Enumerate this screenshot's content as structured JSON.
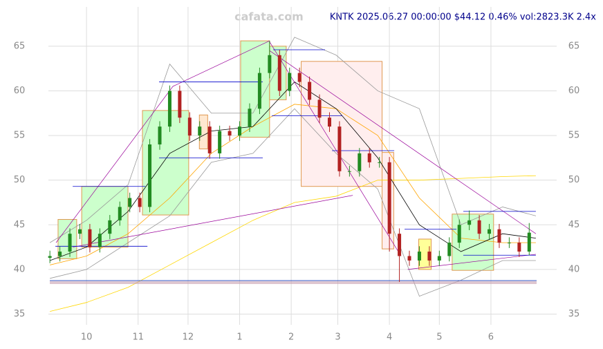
{
  "chart_data": {
    "type": "candlestick",
    "watermark": "cafata.com",
    "title": "KNTK 2025.06.27 00:00:00 $44.12 0.46% vol:2823.3K 2.4x",
    "xlim": [
      7.1,
      312.5
    ],
    "ylim": [
      33.8,
      69.4
    ],
    "xticks": [
      {
        "value": 30,
        "label": "10"
      },
      {
        "value": 61,
        "label": "11"
      },
      {
        "value": 91,
        "label": "12"
      },
      {
        "value": 122,
        "label": "1"
      },
      {
        "value": 153,
        "label": "2"
      },
      {
        "value": 181,
        "label": "3"
      },
      {
        "value": 212,
        "label": "4"
      },
      {
        "value": 242,
        "label": "5"
      },
      {
        "value": 273,
        "label": "6"
      }
    ],
    "yticks": [
      35,
      40,
      45,
      50,
      55,
      60,
      65
    ],
    "grid": true,
    "up_color": "#228b22",
    "down_color": "#b22222",
    "x": [
      8,
      14,
      20,
      26,
      32,
      38,
      44,
      50,
      56,
      62,
      68,
      74,
      80,
      86,
      92,
      98,
      104,
      110,
      116,
      122,
      128,
      134,
      140,
      146,
      152,
      158,
      164,
      170,
      176,
      182,
      188,
      194,
      200,
      206,
      212,
      218,
      224,
      230,
      236,
      242,
      248,
      254,
      260,
      266,
      272,
      278,
      284,
      290,
      296
    ],
    "open": [
      41.3,
      41.5,
      42,
      44,
      44.5,
      42.5,
      44,
      45.5,
      47,
      48,
      47,
      54,
      56,
      60,
      57,
      55,
      56,
      53,
      55.5,
      55,
      56,
      58,
      62,
      64,
      60,
      62,
      61,
      59,
      57,
      56,
      51,
      51,
      53,
      52,
      52,
      44,
      41.5,
      41,
      42,
      41,
      41.5,
      43,
      45,
      45.5,
      44,
      44.5,
      43,
      43,
      42
    ],
    "high": [
      42.1,
      42.6,
      44.6,
      45.1,
      45.1,
      44.6,
      46.1,
      47.6,
      48.6,
      48.6,
      54.6,
      56.6,
      60.6,
      60.6,
      57.6,
      56.6,
      56.6,
      56.1,
      56.1,
      56.6,
      58.6,
      62.6,
      65.6,
      64.6,
      62.6,
      62.6,
      61.6,
      59.6,
      57.6,
      56.6,
      51.6,
      53.6,
      53.6,
      52.6,
      52.6,
      44.6,
      42.1,
      42.6,
      42.6,
      42.1,
      43.6,
      45.6,
      46.6,
      46.1,
      45.1,
      45.1,
      43.6,
      43.6,
      45.2
    ],
    "low": [
      40.7,
      40.9,
      41.4,
      43.4,
      41.9,
      41.9,
      43.4,
      44.9,
      46.4,
      46.4,
      46.4,
      53.4,
      55.4,
      56.4,
      54.4,
      54.4,
      52.4,
      52.4,
      54.4,
      54.4,
      55.4,
      57.4,
      61.4,
      59.4,
      59.4,
      60.4,
      58.4,
      56.4,
      55.4,
      50.4,
      50.4,
      50.4,
      51.4,
      51.4,
      42,
      38.6,
      40.4,
      40.4,
      40.4,
      40.4,
      40.9,
      42.4,
      44.4,
      43.4,
      43.4,
      42.4,
      42.4,
      41.4,
      41.6
    ],
    "close": [
      41.5,
      42,
      44,
      44.5,
      42.5,
      44,
      45.5,
      47,
      48,
      47,
      54,
      56,
      60,
      57,
      55,
      56,
      53,
      55.5,
      55,
      56,
      58,
      62,
      64,
      60,
      62,
      61,
      59,
      57,
      56,
      51,
      51,
      53,
      52,
      52,
      44,
      41.5,
      41,
      42,
      41,
      41.5,
      43,
      45,
      45.5,
      44,
      44.5,
      43,
      43,
      42,
      44.12
    ],
    "boxes": [
      {
        "x": [
          12.9,
          24.1
        ],
        "y": [
          41.2,
          45.6
        ],
        "color": "#ccffcc"
      },
      {
        "x": [
          27.1,
          54.9
        ],
        "y": [
          42.5,
          49.3
        ],
        "color": "#ccffcc"
      },
      {
        "x": [
          63.6,
          91.4
        ],
        "y": [
          46.1,
          57.8
        ],
        "color": "#ccffcc"
      },
      {
        "x": [
          97.8,
          102.8
        ],
        "y": [
          53.5,
          57.3
        ],
        "color": "#ffe8d0"
      },
      {
        "x": [
          122.6,
          140
        ],
        "y": [
          54.8,
          65.6
        ],
        "color": "#ccffcc"
      },
      {
        "x": [
          140,
          150
        ],
        "y": [
          59,
          65
        ],
        "color": "#ccffcc"
      },
      {
        "x": [
          159,
          207.6
        ],
        "y": [
          49.3,
          63.3
        ],
        "color": "#ffeeee"
      },
      {
        "x": [
          207.6,
          214.6
        ],
        "y": [
          42.3,
          53.1
        ],
        "color": "#ffeeee"
      },
      {
        "x": [
          229.6,
          237.1
        ],
        "y": [
          40,
          43.4
        ],
        "color": "#ffff99"
      },
      {
        "x": [
          249.7,
          274.6
        ],
        "y": [
          39.9,
          46.2
        ],
        "color": "#ccffcc"
      }
    ],
    "lines": {
      "x": [
        8,
        30,
        55,
        80,
        105,
        130,
        155,
        180,
        205,
        230,
        255,
        280,
        300
      ],
      "series": [
        {
          "color": "#999999",
          "values": [
            43,
            45.5,
            49.5,
            63,
            57.5,
            57.5,
            66,
            64,
            60,
            58,
            45,
            47,
            46
          ]
        },
        {
          "color": "#999999",
          "values": [
            39,
            40,
            43,
            46,
            52,
            53,
            58,
            53,
            49,
            37,
            38.8,
            41,
            41
          ]
        },
        {
          "color": "#ffd700",
          "values": [
            35.3,
            36.3,
            38,
            40.5,
            43,
            45.5,
            47.5,
            48.2,
            50,
            50,
            50.2,
            50.4,
            50.5
          ]
        },
        {
          "color": "#ffa500",
          "values": [
            40.5,
            41.5,
            44,
            48,
            53,
            56,
            58.5,
            58,
            55,
            48,
            43.5,
            43,
            43
          ]
        },
        {
          "color": "#000000",
          "values": [
            41,
            42.5,
            46.5,
            53,
            55.5,
            56,
            61,
            58,
            52.5,
            45,
            42,
            44,
            43.5
          ]
        }
      ]
    },
    "trend_lines": [
      {
        "x": [
          11.7,
          81.9
        ],
        "y": [
          43,
          60.5
        ]
      },
      {
        "x": [
          81.9,
          140
        ],
        "y": [
          60.5,
          65.6
        ]
      },
      {
        "x": [
          140,
          219
        ],
        "y": [
          65.5,
          41.5
        ]
      },
      {
        "x": [
          140,
          300
        ],
        "y": [
          64.5,
          44
        ]
      },
      {
        "x": [
          21.7,
          190
        ],
        "y": [
          42.5,
          48.3
        ]
      },
      {
        "x": [
          223,
          300
        ],
        "y": [
          40,
          41.7
        ]
      }
    ],
    "levels": [
      {
        "x": [
          21.7,
          65.3
        ],
        "y": 49.3
      },
      {
        "x": [
          11.3,
          66.6
        ],
        "y": 42.6
      },
      {
        "x": [
          73.6,
          135.9
        ],
        "y": 61
      },
      {
        "x": [
          73.6,
          135.9
        ],
        "y": 52.5
      },
      {
        "x": [
          142.2,
          173.3
        ],
        "y": 64.6
      },
      {
        "x": [
          141.3,
          183.7
        ],
        "y": 57.2
      },
      {
        "x": [
          177.5,
          214.9
        ],
        "y": 53.3
      },
      {
        "x": [
          221.1,
          252.3
        ],
        "y": 44.5
      },
      {
        "x": [
          256.4,
          300
        ],
        "y": 46.5
      },
      {
        "x": [
          256.4,
          300
        ],
        "y": 41.6
      }
    ]
  }
}
